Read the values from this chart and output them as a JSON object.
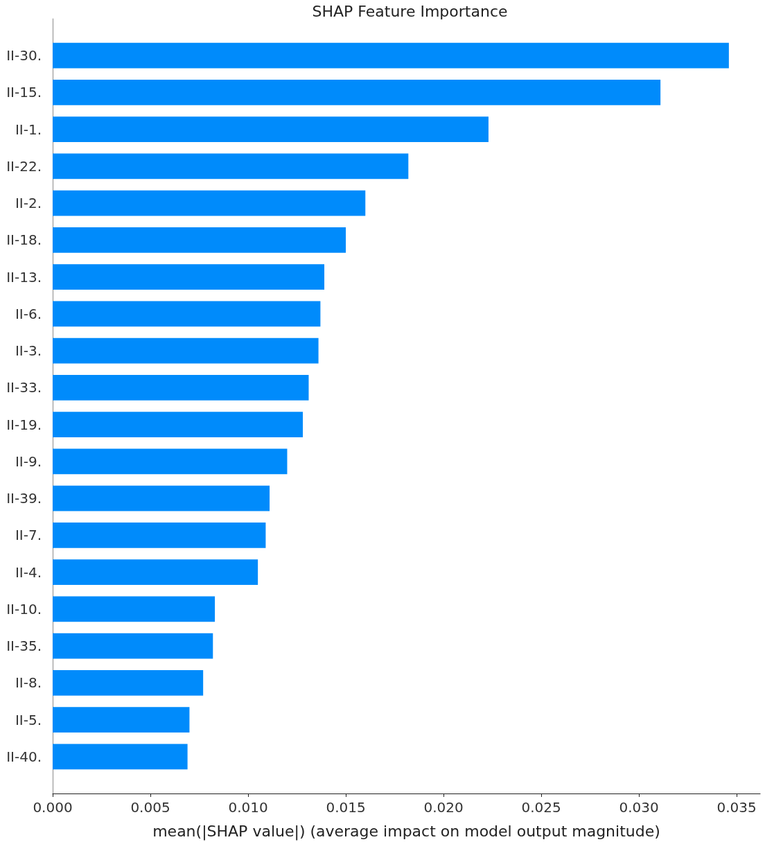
{
  "chart_data": {
    "type": "bar",
    "orientation": "horizontal",
    "title": "SHAP Feature Importance",
    "xlabel": "mean(|SHAP value|) (average impact on model output magnitude)",
    "categories": [
      "II-30.",
      "II-15.",
      "II-1.",
      "II-22.",
      "II-2.",
      "II-18.",
      "II-13.",
      "II-6.",
      "II-3.",
      "II-33.",
      "II-19.",
      "II-9.",
      "II-39.",
      "II-7.",
      "II-4.",
      "II-10.",
      "II-35.",
      "II-8.",
      "II-5.",
      "II-40."
    ],
    "values": [
      0.0346,
      0.0311,
      0.0223,
      0.0182,
      0.016,
      0.015,
      0.0139,
      0.0137,
      0.0136,
      0.0131,
      0.0128,
      0.012,
      0.0111,
      0.0109,
      0.0105,
      0.0083,
      0.0082,
      0.0077,
      0.007,
      0.0069
    ],
    "color": "#008bfb",
    "xlim": [
      0,
      0.0362
    ],
    "xticks": [
      {
        "value": 0,
        "label": "0.000"
      },
      0.005,
      {
        "value": 0.01,
        "label": "0.010"
      },
      0.015,
      {
        "value": 0.02,
        "label": "0.020"
      },
      0.025,
      {
        "value": 0.03,
        "label": "0.030"
      },
      0.035
    ],
    "grid": false
  }
}
